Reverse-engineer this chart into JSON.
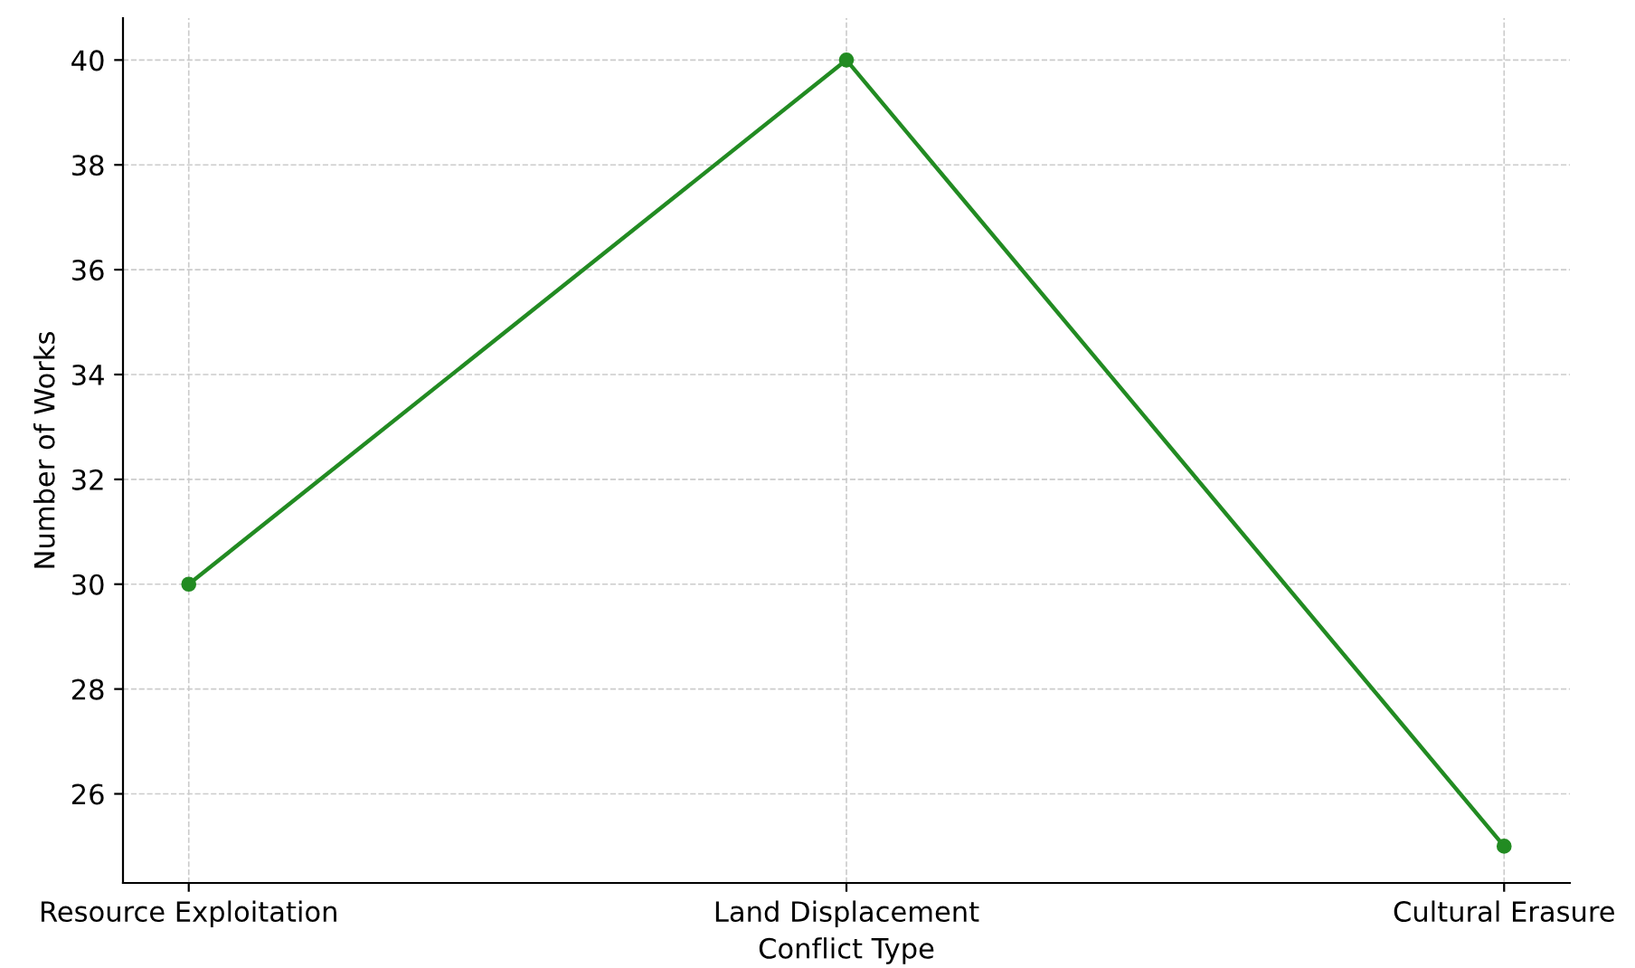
{
  "chart_data": {
    "type": "line",
    "xlabel": "Conflict Type",
    "ylabel": "Number of Works",
    "categories": [
      "Resource Exploitation",
      "Land Displacement",
      "Cultural Erasure"
    ],
    "series": [
      {
        "color": "#228b22",
        "values": [
          30,
          40,
          25
        ]
      }
    ],
    "ylim": [
      24.3,
      40.8
    ],
    "yticks": [
      26,
      28,
      30,
      32,
      34,
      36,
      38,
      40
    ],
    "grid": true,
    "marker": "circle",
    "line_style": "solid"
  }
}
